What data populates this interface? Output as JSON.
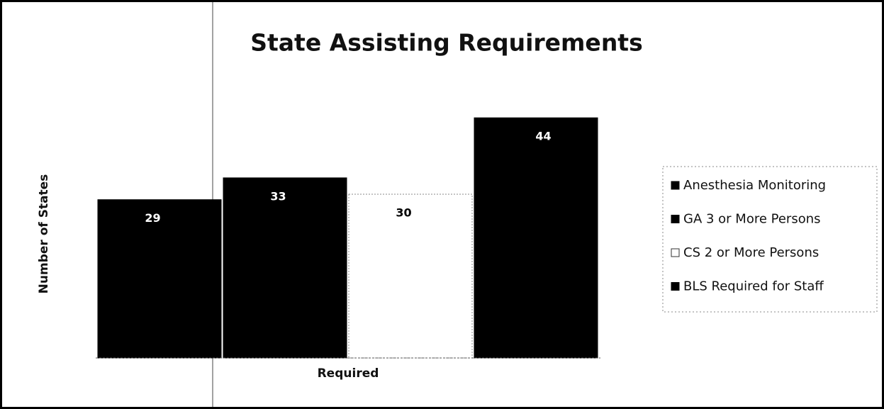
{
  "chart_data": {
    "type": "bar",
    "title": "State Assisting Requirements",
    "ylabel": "Number of States",
    "categories": [
      "Required"
    ],
    "series": [
      {
        "name": "Anesthesia Monitoring",
        "color": "#000000",
        "values": [
          29
        ]
      },
      {
        "name": "GA 3 or More Persons",
        "color": "#000000",
        "values": [
          33
        ]
      },
      {
        "name": "CS 2 or More Persons",
        "color": "#ffffff",
        "values": [
          30
        ]
      },
      {
        "name": "BLS Required for Staff",
        "color": "#000000",
        "values": [
          44
        ]
      }
    ],
    "ylim": [
      0,
      50
    ],
    "legend": "right",
    "grid": false
  }
}
